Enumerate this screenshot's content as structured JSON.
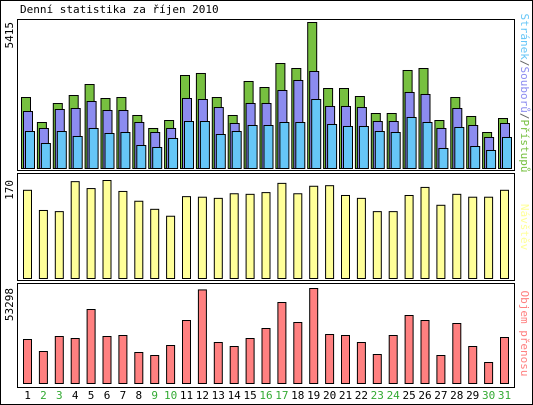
{
  "title": "Denní statistika za říjen 2010",
  "chart_data": [
    {
      "type": "bar",
      "legend_separator": "/",
      "ylim": [
        0,
        5415
      ],
      "yticks": [
        5415
      ],
      "label_color": "#666666",
      "series": [
        {
          "name": "Přístupů",
          "color": "#77c040",
          "values": [
            2633,
            1706,
            2410,
            2707,
            3115,
            2596,
            2633,
            1966,
            1484,
            1780,
            3449,
            3524,
            2633,
            1966,
            3227,
            3004,
            3894,
            3709,
            5415,
            2967,
            2967,
            2670,
            2040,
            2040,
            3635,
            3709,
            1780,
            2633,
            1929,
            1335,
            1854
          ]
        },
        {
          "name": "Souborů",
          "color": "#8c8cf0",
          "values": [
            2114,
            1484,
            2188,
            2225,
            2485,
            2151,
            2151,
            1706,
            1335,
            1484,
            2596,
            2559,
            2262,
            1669,
            2411,
            2411,
            2893,
            3264,
            3598,
            2300,
            2300,
            2262,
            1743,
            1743,
            2819,
            2745,
            1484,
            2225,
            1595,
            1150,
            1669
          ]
        },
        {
          "name": "Stránek",
          "color": "#66c6f7",
          "values": [
            1372,
            927,
            1372,
            1187,
            1484,
            1298,
            1335,
            853,
            779,
            1113,
            1743,
            1743,
            1261,
            1372,
            1595,
            1595,
            1706,
            1706,
            2559,
            1632,
            1558,
            1558,
            1372,
            1335,
            1892,
            1706,
            742,
            1521,
            816,
            668,
            1150
          ]
        }
      ]
    },
    {
      "type": "bar",
      "ylim": [
        0,
        170
      ],
      "yticks": [
        170
      ],
      "series": [
        {
          "name": "Návštěv",
          "color": "#ffff99",
          "values": [
            153,
            118,
            116,
            168,
            156,
            170,
            151,
            134,
            120,
            108,
            142,
            141,
            139,
            147,
            146,
            149,
            165,
            147,
            160,
            161,
            144,
            139,
            116,
            116,
            144,
            158,
            127,
            146,
            141,
            141,
            153
          ]
        }
      ]
    },
    {
      "type": "bar",
      "ylim": [
        0,
        53298
      ],
      "yticks": [
        53298
      ],
      "categories": [
        "1",
        "2",
        "3",
        "4",
        "5",
        "6",
        "7",
        "8",
        "9",
        "10",
        "11",
        "12",
        "13",
        "14",
        "15",
        "16",
        "17",
        "18",
        "19",
        "20",
        "21",
        "22",
        "23",
        "24",
        "25",
        "26",
        "27",
        "28",
        "29",
        "30",
        "31"
      ],
      "category_colors": [
        "#000000",
        "#33aa33",
        "#33aa33",
        "#000000",
        "#000000",
        "#000000",
        "#000000",
        "#000000",
        "#33aa33",
        "#33aa33",
        "#000000",
        "#000000",
        "#000000",
        "#000000",
        "#000000",
        "#33aa33",
        "#33aa33",
        "#000000",
        "#000000",
        "#000000",
        "#000000",
        "#000000",
        "#33aa33",
        "#33aa33",
        "#000000",
        "#000000",
        "#000000",
        "#000000",
        "#000000",
        "#33aa33",
        "#33aa33"
      ],
      "series": [
        {
          "name": "Objem přenosu",
          "color": "#ff8080",
          "values": [
            24684,
            17952,
            26367,
            25245,
            41514,
            26367,
            26928,
            17391,
            15708,
            21318,
            35343,
            52500,
            23001,
            20757,
            25245,
            30855,
            45441,
            34221,
            53298,
            27489,
            26928,
            23001,
            16269,
            26928,
            38148,
            35343,
            15708,
            33660,
            20757,
            11781,
            25806
          ]
        }
      ]
    }
  ]
}
